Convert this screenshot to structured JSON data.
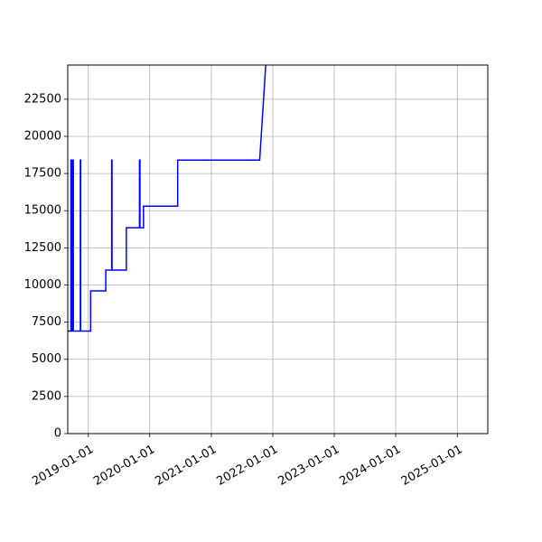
{
  "chart_data": {
    "type": "line",
    "title": "",
    "xlabel": "",
    "ylabel": "",
    "xlim": [
      "2018-09-01",
      "2025-07-01"
    ],
    "ylim": [
      0,
      24800
    ],
    "grid": true,
    "x_ticks": [
      "2019-01-01",
      "2020-01-01",
      "2021-01-01",
      "2022-01-01",
      "2023-01-01",
      "2024-01-01",
      "2025-01-01"
    ],
    "y_ticks": [
      0,
      2500,
      5000,
      7500,
      10000,
      12500,
      15000,
      17500,
      20000,
      22500
    ],
    "y_tick_labels": [
      "0",
      "2500",
      "5000",
      "7500",
      "10000",
      "12500",
      "15000",
      "17500",
      "20000",
      "22500"
    ],
    "series": [
      {
        "color": "#0000ff",
        "points": [
          [
            "2018-09-01",
            6900
          ],
          [
            "2018-09-20",
            6900
          ],
          [
            "2018-09-20",
            18400
          ],
          [
            "2018-09-23",
            18400
          ],
          [
            "2018-09-23",
            6900
          ],
          [
            "2018-09-26",
            6900
          ],
          [
            "2018-09-26",
            18400
          ],
          [
            "2018-09-29",
            18400
          ],
          [
            "2018-09-29",
            6900
          ],
          [
            "2018-10-01",
            6900
          ],
          [
            "2018-10-01",
            18400
          ],
          [
            "2018-10-04",
            18400
          ],
          [
            "2018-10-04",
            6900
          ],
          [
            "2018-11-15",
            6900
          ],
          [
            "2018-11-15",
            18400
          ],
          [
            "2018-11-17",
            18400
          ],
          [
            "2018-11-17",
            6900
          ],
          [
            "2019-01-15",
            6900
          ],
          [
            "2019-01-15",
            9600
          ],
          [
            "2019-04-15",
            9600
          ],
          [
            "2019-04-15",
            11000
          ],
          [
            "2019-05-20",
            11000
          ],
          [
            "2019-05-20",
            18400
          ],
          [
            "2019-05-22",
            18400
          ],
          [
            "2019-05-22",
            11000
          ],
          [
            "2019-08-15",
            11000
          ],
          [
            "2019-08-15",
            13850
          ],
          [
            "2019-11-01",
            13850
          ],
          [
            "2019-11-01",
            18400
          ],
          [
            "2019-11-04",
            18400
          ],
          [
            "2019-11-04",
            13850
          ],
          [
            "2019-11-25",
            13850
          ],
          [
            "2019-11-25",
            15300
          ],
          [
            "2020-06-15",
            15300
          ],
          [
            "2020-06-15",
            18400
          ],
          [
            "2021-10-15",
            18400
          ],
          [
            "2021-11-20",
            24800
          ]
        ]
      }
    ]
  }
}
